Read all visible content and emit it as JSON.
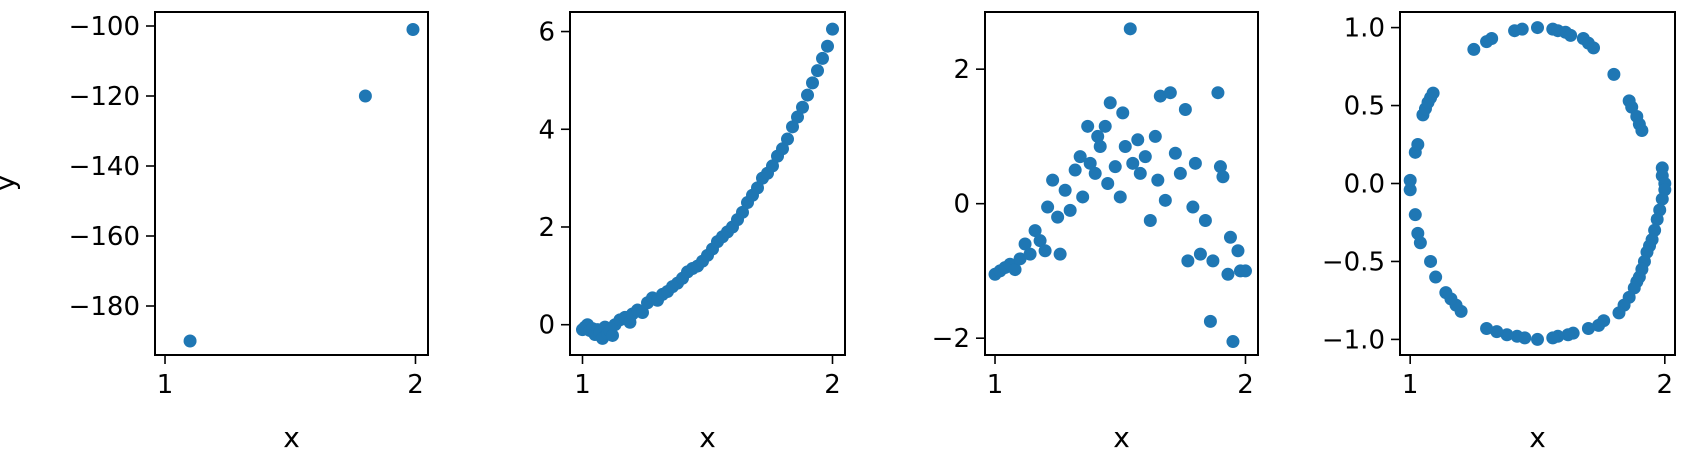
{
  "chart_data": [
    {
      "type": "scatter",
      "color": "#1f77b4",
      "xlabel": "x",
      "ylabel": "y",
      "xlim": [
        0.96,
        2.05
      ],
      "ylim": [
        -194,
        -96
      ],
      "xticks": [
        1,
        2
      ],
      "xtick_labels": [
        "1",
        "2"
      ],
      "yticks": [
        -100,
        -120,
        -140,
        -160,
        -180
      ],
      "ytick_labels": [
        "−100",
        "−120",
        "−140",
        "−160",
        "−180"
      ],
      "points": [
        {
          "x": 1.1,
          "y": -190
        },
        {
          "x": 1.8,
          "y": -120
        },
        {
          "x": 1.99,
          "y": -101
        }
      ]
    },
    {
      "type": "scatter",
      "color": "#1f77b4",
      "xlabel": "x",
      "ylabel": "",
      "xlim": [
        0.95,
        2.05
      ],
      "ylim": [
        -0.62,
        6.4
      ],
      "xticks": [
        1,
        2
      ],
      "xtick_labels": [
        "1",
        "2"
      ],
      "yticks": [
        0,
        2,
        4,
        6
      ],
      "ytick_labels": [
        "0",
        "2",
        "4",
        "6"
      ],
      "points": [
        {
          "x": 1.0,
          "y": -0.1
        },
        {
          "x": 1.01,
          "y": -0.05
        },
        {
          "x": 1.02,
          "y": 0.0
        },
        {
          "x": 1.03,
          "y": -0.12
        },
        {
          "x": 1.04,
          "y": -0.08
        },
        {
          "x": 1.05,
          "y": -0.2
        },
        {
          "x": 1.06,
          "y": -0.1
        },
        {
          "x": 1.07,
          "y": -0.15
        },
        {
          "x": 1.08,
          "y": -0.28
        },
        {
          "x": 1.09,
          "y": -0.05
        },
        {
          "x": 1.1,
          "y": -0.18
        },
        {
          "x": 1.11,
          "y": -0.12
        },
        {
          "x": 1.12,
          "y": -0.22
        },
        {
          "x": 1.13,
          "y": 0.0
        },
        {
          "x": 1.15,
          "y": 0.1
        },
        {
          "x": 1.17,
          "y": 0.15
        },
        {
          "x": 1.19,
          "y": 0.05
        },
        {
          "x": 1.2,
          "y": 0.22
        },
        {
          "x": 1.22,
          "y": 0.3
        },
        {
          "x": 1.24,
          "y": 0.25
        },
        {
          "x": 1.26,
          "y": 0.45
        },
        {
          "x": 1.28,
          "y": 0.55
        },
        {
          "x": 1.3,
          "y": 0.5
        },
        {
          "x": 1.32,
          "y": 0.62
        },
        {
          "x": 1.34,
          "y": 0.68
        },
        {
          "x": 1.36,
          "y": 0.78
        },
        {
          "x": 1.38,
          "y": 0.85
        },
        {
          "x": 1.4,
          "y": 0.95
        },
        {
          "x": 1.42,
          "y": 1.08
        },
        {
          "x": 1.44,
          "y": 1.15
        },
        {
          "x": 1.46,
          "y": 1.2
        },
        {
          "x": 1.48,
          "y": 1.3
        },
        {
          "x": 1.5,
          "y": 1.42
        },
        {
          "x": 1.52,
          "y": 1.55
        },
        {
          "x": 1.54,
          "y": 1.7
        },
        {
          "x": 1.56,
          "y": 1.8
        },
        {
          "x": 1.58,
          "y": 1.9
        },
        {
          "x": 1.6,
          "y": 2.0
        },
        {
          "x": 1.62,
          "y": 2.15
        },
        {
          "x": 1.64,
          "y": 2.3
        },
        {
          "x": 1.66,
          "y": 2.5
        },
        {
          "x": 1.68,
          "y": 2.65
        },
        {
          "x": 1.7,
          "y": 2.8
        },
        {
          "x": 1.72,
          "y": 3.0
        },
        {
          "x": 1.74,
          "y": 3.1
        },
        {
          "x": 1.76,
          "y": 3.25
        },
        {
          "x": 1.78,
          "y": 3.45
        },
        {
          "x": 1.8,
          "y": 3.6
        },
        {
          "x": 1.82,
          "y": 3.8
        },
        {
          "x": 1.84,
          "y": 4.05
        },
        {
          "x": 1.86,
          "y": 4.25
        },
        {
          "x": 1.88,
          "y": 4.45
        },
        {
          "x": 1.9,
          "y": 4.7
        },
        {
          "x": 1.92,
          "y": 4.95
        },
        {
          "x": 1.94,
          "y": 5.2
        },
        {
          "x": 1.96,
          "y": 5.45
        },
        {
          "x": 1.98,
          "y": 5.7
        },
        {
          "x": 2.0,
          "y": 6.05
        }
      ]
    },
    {
      "type": "scatter",
      "color": "#1f77b4",
      "xlabel": "x",
      "ylabel": "",
      "xlim": [
        0.96,
        2.05
      ],
      "ylim": [
        -2.25,
        2.85
      ],
      "xticks": [
        1,
        2
      ],
      "xtick_labels": [
        "1",
        "2"
      ],
      "yticks": [
        2,
        0,
        -2
      ],
      "ytick_labels": [
        "2",
        "0",
        "−2"
      ],
      "points": [
        {
          "x": 1.0,
          "y": -1.05
        },
        {
          "x": 1.02,
          "y": -1.0
        },
        {
          "x": 1.04,
          "y": -0.95
        },
        {
          "x": 1.06,
          "y": -0.9
        },
        {
          "x": 1.08,
          "y": -0.98
        },
        {
          "x": 1.1,
          "y": -0.82
        },
        {
          "x": 1.12,
          "y": -0.6
        },
        {
          "x": 1.14,
          "y": -0.75
        },
        {
          "x": 1.16,
          "y": -0.4
        },
        {
          "x": 1.18,
          "y": -0.55
        },
        {
          "x": 1.2,
          "y": -0.7
        },
        {
          "x": 1.21,
          "y": -0.05
        },
        {
          "x": 1.23,
          "y": 0.35
        },
        {
          "x": 1.25,
          "y": -0.2
        },
        {
          "x": 1.26,
          "y": -0.75
        },
        {
          "x": 1.28,
          "y": 0.2
        },
        {
          "x": 1.3,
          "y": -0.1
        },
        {
          "x": 1.32,
          "y": 0.5
        },
        {
          "x": 1.34,
          "y": 0.7
        },
        {
          "x": 1.35,
          "y": 0.1
        },
        {
          "x": 1.37,
          "y": 1.15
        },
        {
          "x": 1.38,
          "y": 0.6
        },
        {
          "x": 1.4,
          "y": 0.45
        },
        {
          "x": 1.41,
          "y": 1.0
        },
        {
          "x": 1.42,
          "y": 0.85
        },
        {
          "x": 1.44,
          "y": 1.15
        },
        {
          "x": 1.45,
          "y": 0.3
        },
        {
          "x": 1.46,
          "y": 1.5
        },
        {
          "x": 1.48,
          "y": 0.55
        },
        {
          "x": 1.5,
          "y": 0.1
        },
        {
          "x": 1.51,
          "y": 1.35
        },
        {
          "x": 1.52,
          "y": 0.85
        },
        {
          "x": 1.54,
          "y": 2.6
        },
        {
          "x": 1.55,
          "y": 0.6
        },
        {
          "x": 1.57,
          "y": 0.95
        },
        {
          "x": 1.58,
          "y": 0.45
        },
        {
          "x": 1.6,
          "y": 0.7
        },
        {
          "x": 1.62,
          "y": -0.25
        },
        {
          "x": 1.64,
          "y": 1.0
        },
        {
          "x": 1.65,
          "y": 0.35
        },
        {
          "x": 1.66,
          "y": 1.6
        },
        {
          "x": 1.68,
          "y": 0.05
        },
        {
          "x": 1.7,
          "y": 1.65
        },
        {
          "x": 1.72,
          "y": 0.75
        },
        {
          "x": 1.74,
          "y": 0.45
        },
        {
          "x": 1.76,
          "y": 1.4
        },
        {
          "x": 1.77,
          "y": -0.85
        },
        {
          "x": 1.79,
          "y": -0.05
        },
        {
          "x": 1.8,
          "y": 0.6
        },
        {
          "x": 1.82,
          "y": -0.75
        },
        {
          "x": 1.84,
          "y": -0.25
        },
        {
          "x": 1.86,
          "y": -1.75
        },
        {
          "x": 1.87,
          "y": -0.85
        },
        {
          "x": 1.89,
          "y": 1.65
        },
        {
          "x": 1.9,
          "y": 0.55
        },
        {
          "x": 1.91,
          "y": 0.4
        },
        {
          "x": 1.93,
          "y": -1.05
        },
        {
          "x": 1.94,
          "y": -0.5
        },
        {
          "x": 1.95,
          "y": -2.05
        },
        {
          "x": 1.97,
          "y": -0.7
        },
        {
          "x": 1.98,
          "y": -1.0
        },
        {
          "x": 2.0,
          "y": -1.0
        }
      ]
    },
    {
      "type": "scatter",
      "color": "#1f77b4",
      "xlabel": "x",
      "ylabel": "",
      "xlim": [
        0.96,
        2.04
      ],
      "ylim": [
        -1.1,
        1.1
      ],
      "xticks": [
        1,
        2
      ],
      "xtick_labels": [
        "1",
        "2"
      ],
      "yticks": [
        1.0,
        0.5,
        0.0,
        -0.5,
        -1.0
      ],
      "ytick_labels": [
        "1.0",
        "0.5",
        "0.0",
        "−0.5",
        "−1.0"
      ],
      "points": [
        {
          "x": 1.5,
          "y": 1.0
        },
        {
          "x": 1.44,
          "y": 0.99
        },
        {
          "x": 1.41,
          "y": 0.98
        },
        {
          "x": 1.32,
          "y": 0.93
        },
        {
          "x": 1.3,
          "y": 0.91
        },
        {
          "x": 1.25,
          "y": 0.86
        },
        {
          "x": 1.56,
          "y": 0.99
        },
        {
          "x": 1.58,
          "y": 0.98
        },
        {
          "x": 1.61,
          "y": 0.97
        },
        {
          "x": 1.63,
          "y": 0.95
        },
        {
          "x": 1.68,
          "y": 0.93
        },
        {
          "x": 1.7,
          "y": 0.9
        },
        {
          "x": 1.72,
          "y": 0.87
        },
        {
          "x": 1.8,
          "y": 0.7
        },
        {
          "x": 1.86,
          "y": 0.53
        },
        {
          "x": 1.87,
          "y": 0.49
        },
        {
          "x": 1.89,
          "y": 0.43
        },
        {
          "x": 1.9,
          "y": 0.38
        },
        {
          "x": 1.91,
          "y": 0.34
        },
        {
          "x": 1.99,
          "y": 0.1
        },
        {
          "x": 1.99,
          "y": 0.05
        },
        {
          "x": 2.0,
          "y": 0.0
        },
        {
          "x": 2.0,
          "y": -0.04
        },
        {
          "x": 1.99,
          "y": -0.1
        },
        {
          "x": 1.98,
          "y": -0.17
        },
        {
          "x": 1.97,
          "y": -0.23
        },
        {
          "x": 1.96,
          "y": -0.3
        },
        {
          "x": 1.95,
          "y": -0.36
        },
        {
          "x": 1.94,
          "y": -0.4
        },
        {
          "x": 1.93,
          "y": -0.44
        },
        {
          "x": 1.92,
          "y": -0.5
        },
        {
          "x": 1.91,
          "y": -0.55
        },
        {
          "x": 1.9,
          "y": -0.6
        },
        {
          "x": 1.89,
          "y": -0.63
        },
        {
          "x": 1.88,
          "y": -0.67
        },
        {
          "x": 1.86,
          "y": -0.73
        },
        {
          "x": 1.84,
          "y": -0.78
        },
        {
          "x": 1.82,
          "y": -0.83
        },
        {
          "x": 1.76,
          "y": -0.88
        },
        {
          "x": 1.74,
          "y": -0.91
        },
        {
          "x": 1.7,
          "y": -0.93
        },
        {
          "x": 1.64,
          "y": -0.96
        },
        {
          "x": 1.62,
          "y": -0.97
        },
        {
          "x": 1.58,
          "y": -0.98
        },
        {
          "x": 1.56,
          "y": -0.99
        },
        {
          "x": 1.5,
          "y": -1.0
        },
        {
          "x": 1.45,
          "y": -0.99
        },
        {
          "x": 1.42,
          "y": -0.98
        },
        {
          "x": 1.38,
          "y": -0.97
        },
        {
          "x": 1.34,
          "y": -0.95
        },
        {
          "x": 1.3,
          "y": -0.93
        },
        {
          "x": 1.2,
          "y": -0.82
        },
        {
          "x": 1.18,
          "y": -0.78
        },
        {
          "x": 1.16,
          "y": -0.74
        },
        {
          "x": 1.14,
          "y": -0.7
        },
        {
          "x": 1.1,
          "y": -0.6
        },
        {
          "x": 1.08,
          "y": -0.5
        },
        {
          "x": 1.04,
          "y": -0.38
        },
        {
          "x": 1.03,
          "y": -0.32
        },
        {
          "x": 1.02,
          "y": -0.2
        },
        {
          "x": 1.0,
          "y": -0.04
        },
        {
          "x": 1.0,
          "y": 0.02
        },
        {
          "x": 1.02,
          "y": 0.2
        },
        {
          "x": 1.03,
          "y": 0.25
        },
        {
          "x": 1.05,
          "y": 0.44
        },
        {
          "x": 1.06,
          "y": 0.48
        },
        {
          "x": 1.07,
          "y": 0.52
        },
        {
          "x": 1.08,
          "y": 0.55
        },
        {
          "x": 1.09,
          "y": 0.58
        }
      ]
    }
  ]
}
